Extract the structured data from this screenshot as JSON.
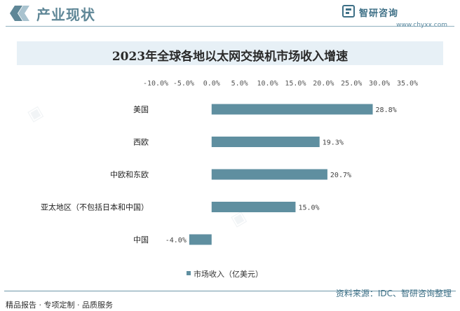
{
  "header": {
    "title": "产业现状",
    "brand_name": "智研咨询",
    "brand_url": "www.chyxx.com"
  },
  "footer": {
    "tagline": "精品报告 · 专项定制 · 品质服务",
    "source": "资料来源：IDC、智研咨询整理"
  },
  "colors": {
    "bar": "#5f8fa0",
    "accent": "#5f8797"
  },
  "chart_data": {
    "type": "bar",
    "orientation": "horizontal",
    "title": "2023年全球各地以太网交换机市场收入增速",
    "categories": [
      "美国",
      "西欧",
      "中欧和东欧",
      "亚太地区（不包括日本和中国）",
      "中国"
    ],
    "series": [
      {
        "name": "市场收入（亿美元）",
        "values": [
          28.8,
          19.3,
          20.7,
          15.0,
          -4.0
        ]
      }
    ],
    "value_labels": [
      "28.8%",
      "19.3%",
      "20.7%",
      "15.0%",
      "-4.0%"
    ],
    "xlim": [
      -10,
      35
    ],
    "ticks": [
      -10,
      -5,
      0,
      5,
      10,
      15,
      20,
      25,
      30,
      35
    ],
    "tick_labels": [
      "-10.0%",
      "-5.0%",
      "0.0%",
      "5.0%",
      "10.0%",
      "15.0%",
      "20.0%",
      "25.0%",
      "30.0%",
      "35.0%"
    ],
    "x_axis_position": "top",
    "legend_position": "bottom",
    "grid": false
  }
}
